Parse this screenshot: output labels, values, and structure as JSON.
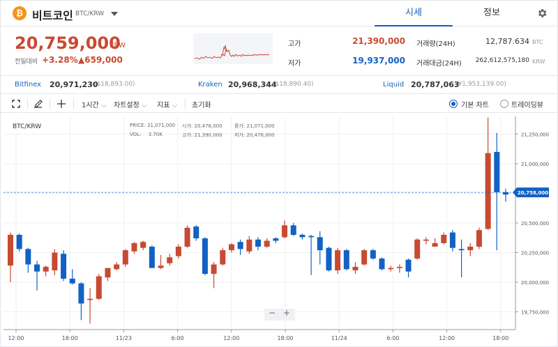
{
  "header": {
    "logo_symbol": "₿",
    "coin_name": "비트코인",
    "pair": "BTC/KRW",
    "tabs": [
      {
        "label": "시세",
        "active": true
      },
      {
        "label": "정보",
        "active": false
      }
    ],
    "settings_icon": "gear-icon"
  },
  "summary": {
    "price": "20,759,000",
    "price_unit": "KRW",
    "prev_label": "전일대비",
    "change_pct": "+3.28%",
    "change_amt": "▲659,000",
    "high_label": "고가",
    "high_value": "21,390,000",
    "low_label": "저가",
    "low_value": "19,937,000",
    "volume_label": "거래량(24H)",
    "volume_value": "12,787.634",
    "volume_unit": "BTC",
    "amount_label": "거래대금(24H)",
    "amount_value": "262,612,575,180",
    "amount_unit": "KRW"
  },
  "exchanges": [
    {
      "name": "Bitfinex",
      "price": "20,971,230",
      "usd": "($18,893.00)"
    },
    {
      "name": "Kraken",
      "price": "20,968,344",
      "usd": "($18,890.40)"
    },
    {
      "name": "Liquid",
      "price": "20,787,063",
      "usd": "(¥1,953,139.00)"
    }
  ],
  "toolbar": {
    "crosshair_icon": "fullscreen-icon",
    "pen_icon": "pencil-icon",
    "cross_icon": "crosshair-icon",
    "interval": "1시간",
    "chart_settings": "차트설정",
    "indicators": "지표",
    "reset": "초기화",
    "view_basic": "기본 차트",
    "view_trading": "트레이딩뷰",
    "selected_view": "기본 차트"
  },
  "chart": {
    "pair_label": "BTC/KRW",
    "info": {
      "price_label": "PRICE:",
      "price_value": "21,071,000",
      "open_label": "시가:",
      "open_value": "20,478,000",
      "close_label": "종가:",
      "close_value": "21,071,000",
      "vol_label": "VOL:",
      "vol_value": "3.70K",
      "high_label": "고가:",
      "high_value": "21,390,000",
      "low_label": "저가:",
      "low_value": "20,476,000"
    },
    "zoom_out": "−",
    "zoom_in": "+"
  },
  "chart_data": {
    "type": "candlestick",
    "y_ticks": [
      19750000,
      20000000,
      20250000,
      20500000,
      20750000,
      21000000,
      21250000
    ],
    "y_tick_labels": [
      "19,750,000",
      "20,000,000",
      "20,250,000",
      "20,500,000",
      "20,750,000",
      "21,000,000",
      "21,250,000"
    ],
    "x_ticks": [
      "12:00",
      "18:00",
      "11/23",
      "6:00",
      "12:00",
      "18:00",
      "11/24",
      "6:00",
      "12:00",
      "18:00"
    ],
    "current_price": 20758000,
    "current_price_label": "20,758,000",
    "ylim": [
      19600000,
      21400000
    ],
    "colors": {
      "up": "#c84a31",
      "down": "#1261c4"
    },
    "candles": [
      {
        "o": 20140000,
        "h": 20420000,
        "l": 20000000,
        "c": 20400000
      },
      {
        "o": 20400000,
        "h": 20410000,
        "l": 20260000,
        "c": 20280000
      },
      {
        "o": 20280000,
        "h": 20290000,
        "l": 20080000,
        "c": 20150000
      },
      {
        "o": 20150000,
        "h": 20180000,
        "l": 19930000,
        "c": 20090000
      },
      {
        "o": 20090000,
        "h": 20140000,
        "l": 20050000,
        "c": 20130000
      },
      {
        "o": 20100000,
        "h": 20280000,
        "l": 20060000,
        "c": 20250000
      },
      {
        "o": 20240000,
        "h": 20270000,
        "l": 20010000,
        "c": 20030000
      },
      {
        "o": 20030000,
        "h": 20110000,
        "l": 19980000,
        "c": 19990000
      },
      {
        "o": 19990000,
        "h": 20000000,
        "l": 19680000,
        "c": 19820000
      },
      {
        "o": 19850000,
        "h": 19950000,
        "l": 19650000,
        "c": 19860000
      },
      {
        "o": 19860000,
        "h": 20070000,
        "l": 19850000,
        "c": 20050000
      },
      {
        "o": 20040000,
        "h": 20120000,
        "l": 20010000,
        "c": 20120000
      },
      {
        "o": 20110000,
        "h": 20170000,
        "l": 20100000,
        "c": 20150000
      },
      {
        "o": 20150000,
        "h": 20280000,
        "l": 20130000,
        "c": 20270000
      },
      {
        "o": 20260000,
        "h": 20340000,
        "l": 20240000,
        "c": 20330000
      },
      {
        "o": 20290000,
        "h": 20350000,
        "l": 20270000,
        "c": 20340000
      },
      {
        "o": 20300000,
        "h": 20310000,
        "l": 20120000,
        "c": 20120000
      },
      {
        "o": 20120000,
        "h": 20230000,
        "l": 20110000,
        "c": 20140000
      },
      {
        "o": 20160000,
        "h": 20240000,
        "l": 20140000,
        "c": 20210000
      },
      {
        "o": 20220000,
        "h": 20320000,
        "l": 20200000,
        "c": 20300000
      },
      {
        "o": 20300000,
        "h": 20480000,
        "l": 20290000,
        "c": 20460000
      },
      {
        "o": 20470000,
        "h": 20480000,
        "l": 20350000,
        "c": 20370000
      },
      {
        "o": 20370000,
        "h": 20380000,
        "l": 20060000,
        "c": 20070000
      },
      {
        "o": 20070000,
        "h": 20170000,
        "l": 19950000,
        "c": 20150000
      },
      {
        "o": 20150000,
        "h": 20290000,
        "l": 20140000,
        "c": 20270000
      },
      {
        "o": 20270000,
        "h": 20330000,
        "l": 20250000,
        "c": 20320000
      },
      {
        "o": 20340000,
        "h": 20360000,
        "l": 20230000,
        "c": 20280000
      },
      {
        "o": 20260000,
        "h": 20390000,
        "l": 20240000,
        "c": 20360000
      },
      {
        "o": 20360000,
        "h": 20380000,
        "l": 20270000,
        "c": 20300000
      },
      {
        "o": 20300000,
        "h": 20370000,
        "l": 20290000,
        "c": 20350000
      },
      {
        "o": 20370000,
        "h": 20380000,
        "l": 20330000,
        "c": 20350000
      },
      {
        "o": 20380000,
        "h": 20520000,
        "l": 20370000,
        "c": 20480000
      },
      {
        "o": 20480000,
        "h": 20500000,
        "l": 20390000,
        "c": 20400000
      },
      {
        "o": 20400000,
        "h": 20410000,
        "l": 20360000,
        "c": 20380000
      },
      {
        "o": 20390000,
        "h": 20400000,
        "l": 20060000,
        "c": 20380000
      },
      {
        "o": 20380000,
        "h": 20430000,
        "l": 20150000,
        "c": 20270000
      },
      {
        "o": 20290000,
        "h": 20300000,
        "l": 20090000,
        "c": 20100000
      },
      {
        "o": 20100000,
        "h": 20290000,
        "l": 20070000,
        "c": 20270000
      },
      {
        "o": 20270000,
        "h": 20280000,
        "l": 20100000,
        "c": 20110000
      },
      {
        "o": 20100000,
        "h": 20170000,
        "l": 20070000,
        "c": 20130000
      },
      {
        "o": 20150000,
        "h": 20280000,
        "l": 20140000,
        "c": 20270000
      },
      {
        "o": 20270000,
        "h": 20280000,
        "l": 20190000,
        "c": 20200000
      },
      {
        "o": 20200000,
        "h": 20210000,
        "l": 20100000,
        "c": 20110000
      },
      {
        "o": 20110000,
        "h": 20140000,
        "l": 20090000,
        "c": 20120000
      },
      {
        "o": 20120000,
        "h": 20150000,
        "l": 20080000,
        "c": 20130000
      },
      {
        "o": 20190000,
        "h": 20200000,
        "l": 20040000,
        "c": 20090000
      },
      {
        "o": 20200000,
        "h": 20370000,
        "l": 20190000,
        "c": 20360000
      },
      {
        "o": 20350000,
        "h": 20380000,
        "l": 20320000,
        "c": 20360000
      },
      {
        "o": 20300000,
        "h": 20370000,
        "l": 20300000,
        "c": 20330000
      },
      {
        "o": 20330000,
        "h": 20420000,
        "l": 20320000,
        "c": 20400000
      },
      {
        "o": 20420000,
        "h": 20440000,
        "l": 20260000,
        "c": 20290000
      },
      {
        "o": 20280000,
        "h": 20360000,
        "l": 20040000,
        "c": 20270000
      },
      {
        "o": 20270000,
        "h": 20330000,
        "l": 20220000,
        "c": 20300000
      },
      {
        "o": 20300000,
        "h": 20460000,
        "l": 20280000,
        "c": 20440000
      },
      {
        "o": 20450000,
        "h": 21390000,
        "l": 20440000,
        "c": 21090000
      },
      {
        "o": 21100000,
        "h": 21260000,
        "l": 20270000,
        "c": 20760000
      },
      {
        "o": 20760000,
        "h": 20790000,
        "l": 20680000,
        "c": 20740000
      }
    ]
  }
}
